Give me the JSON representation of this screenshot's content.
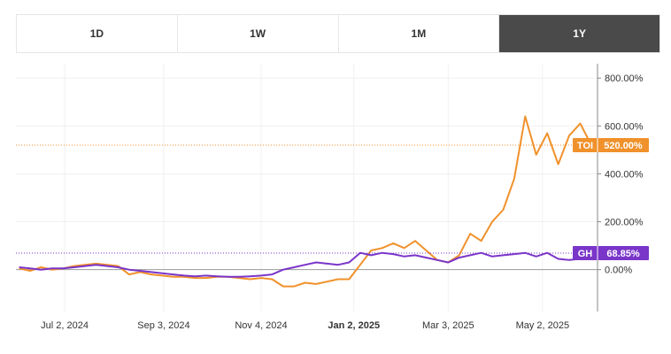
{
  "tabs": [
    {
      "label": "1D",
      "active": false
    },
    {
      "label": "1W",
      "active": false
    },
    {
      "label": "1M",
      "active": false
    },
    {
      "label": "1Y",
      "active": true
    }
  ],
  "chart_data": {
    "type": "line",
    "y_unit": "%",
    "ylim": [
      -175,
      860
    ],
    "y_ticks": [
      "800.00%",
      "600.00%",
      "400.00%",
      "200.00%",
      "0.00%"
    ],
    "y_tick_values": [
      800,
      600,
      400,
      200,
      0
    ],
    "x_ticks": [
      {
        "label": "Jul 2, 2024",
        "bold": false
      },
      {
        "label": "Sep 3, 2024",
        "bold": false
      },
      {
        "label": "Nov 4, 2024",
        "bold": false
      },
      {
        "label": "Jan 2, 2025",
        "bold": true
      },
      {
        "label": "Mar 3, 2025",
        "bold": false
      },
      {
        "label": "May 2, 2025",
        "bold": false
      }
    ],
    "grid": true,
    "series": [
      {
        "name": "TOI",
        "color": "#f0912b",
        "last_label": "520.00%",
        "last_value": 520,
        "points": [
          [
            "2024-06-03",
            5
          ],
          [
            "2024-06-10",
            -5
          ],
          [
            "2024-06-17",
            10
          ],
          [
            "2024-06-24",
            0
          ],
          [
            "2024-07-01",
            5
          ],
          [
            "2024-07-08",
            15
          ],
          [
            "2024-07-15",
            20
          ],
          [
            "2024-07-22",
            25
          ],
          [
            "2024-07-29",
            20
          ],
          [
            "2024-08-05",
            15
          ],
          [
            "2024-08-12",
            -20
          ],
          [
            "2024-08-19",
            -10
          ],
          [
            "2024-08-26",
            -20
          ],
          [
            "2024-09-02",
            -25
          ],
          [
            "2024-09-09",
            -30
          ],
          [
            "2024-09-16",
            -30
          ],
          [
            "2024-09-23",
            -35
          ],
          [
            "2024-09-30",
            -35
          ],
          [
            "2024-10-07",
            -30
          ],
          [
            "2024-10-14",
            -30
          ],
          [
            "2024-10-21",
            -35
          ],
          [
            "2024-10-28",
            -40
          ],
          [
            "2024-11-04",
            -35
          ],
          [
            "2024-11-11",
            -40
          ],
          [
            "2024-11-18",
            -70
          ],
          [
            "2024-11-25",
            -70
          ],
          [
            "2024-12-02",
            -55
          ],
          [
            "2024-12-09",
            -60
          ],
          [
            "2024-12-16",
            -50
          ],
          [
            "2024-12-23",
            -40
          ],
          [
            "2024-12-30",
            -40
          ],
          [
            "2025-01-06",
            20
          ],
          [
            "2025-01-13",
            80
          ],
          [
            "2025-01-20",
            90
          ],
          [
            "2025-01-27",
            110
          ],
          [
            "2025-02-03",
            90
          ],
          [
            "2025-02-10",
            120
          ],
          [
            "2025-02-17",
            80
          ],
          [
            "2025-02-24",
            40
          ],
          [
            "2025-03-03",
            30
          ],
          [
            "2025-03-10",
            60
          ],
          [
            "2025-03-17",
            150
          ],
          [
            "2025-03-24",
            120
          ],
          [
            "2025-03-31",
            200
          ],
          [
            "2025-04-07",
            250
          ],
          [
            "2025-04-14",
            380
          ],
          [
            "2025-04-21",
            640
          ],
          [
            "2025-04-28",
            480
          ],
          [
            "2025-05-05",
            570
          ],
          [
            "2025-05-12",
            440
          ],
          [
            "2025-05-19",
            560
          ],
          [
            "2025-05-26",
            610
          ],
          [
            "2025-06-02",
            520
          ]
        ]
      },
      {
        "name": "GH",
        "color": "#7a35c9",
        "last_label": "68.85%",
        "last_value": 68.85,
        "points": [
          [
            "2024-06-03",
            10
          ],
          [
            "2024-06-10",
            5
          ],
          [
            "2024-06-17",
            0
          ],
          [
            "2024-06-24",
            5
          ],
          [
            "2024-07-01",
            5
          ],
          [
            "2024-07-08",
            10
          ],
          [
            "2024-07-15",
            15
          ],
          [
            "2024-07-22",
            20
          ],
          [
            "2024-07-29",
            15
          ],
          [
            "2024-08-05",
            10
          ],
          [
            "2024-08-12",
            0
          ],
          [
            "2024-08-19",
            -5
          ],
          [
            "2024-08-26",
            -10
          ],
          [
            "2024-09-02",
            -15
          ],
          [
            "2024-09-09",
            -20
          ],
          [
            "2024-09-16",
            -25
          ],
          [
            "2024-09-23",
            -28
          ],
          [
            "2024-09-30",
            -25
          ],
          [
            "2024-10-07",
            -28
          ],
          [
            "2024-10-14",
            -30
          ],
          [
            "2024-10-21",
            -30
          ],
          [
            "2024-10-28",
            -28
          ],
          [
            "2024-11-04",
            -25
          ],
          [
            "2024-11-11",
            -20
          ],
          [
            "2024-11-18",
            0
          ],
          [
            "2024-11-25",
            10
          ],
          [
            "2024-12-02",
            20
          ],
          [
            "2024-12-09",
            30
          ],
          [
            "2024-12-16",
            25
          ],
          [
            "2024-12-23",
            20
          ],
          [
            "2024-12-30",
            30
          ],
          [
            "2025-01-06",
            70
          ],
          [
            "2025-01-13",
            60
          ],
          [
            "2025-01-20",
            70
          ],
          [
            "2025-01-27",
            65
          ],
          [
            "2025-02-03",
            55
          ],
          [
            "2025-02-10",
            60
          ],
          [
            "2025-02-17",
            50
          ],
          [
            "2025-02-24",
            40
          ],
          [
            "2025-03-03",
            30
          ],
          [
            "2025-03-10",
            50
          ],
          [
            "2025-03-17",
            60
          ],
          [
            "2025-03-24",
            70
          ],
          [
            "2025-03-31",
            55
          ],
          [
            "2025-04-07",
            60
          ],
          [
            "2025-04-14",
            65
          ],
          [
            "2025-04-21",
            70
          ],
          [
            "2025-04-28",
            55
          ],
          [
            "2025-05-05",
            70
          ],
          [
            "2025-05-12",
            45
          ],
          [
            "2025-05-19",
            40
          ],
          [
            "2025-05-26",
            45
          ],
          [
            "2025-06-02",
            68.85
          ]
        ]
      }
    ]
  }
}
